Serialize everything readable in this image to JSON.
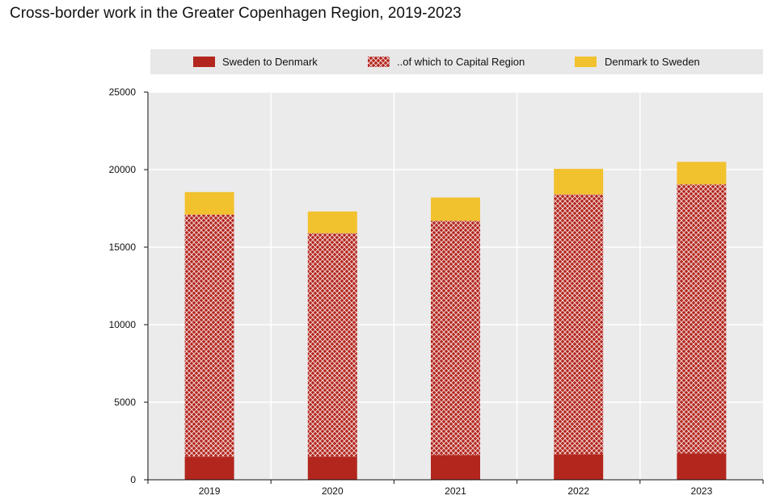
{
  "chart_data": {
    "type": "bar",
    "stacked": true,
    "title": "Cross-border work in the Greater Copenhagen Region, 2019-2023",
    "xlabel": "",
    "ylabel": "",
    "ylim": [
      0,
      25000
    ],
    "yticks": [
      0,
      5000,
      10000,
      15000,
      20000,
      25000
    ],
    "categories": [
      "2019",
      "2020",
      "2021",
      "2022",
      "2023"
    ],
    "grid": true,
    "legend_position": "top",
    "legend": [
      "Sweden to Denmark",
      "..of which to Capital Region",
      "Denmark to Sweden"
    ],
    "series": [
      {
        "name": "Sweden to Denmark",
        "color": "#b3261e",
        "values": [
          1500,
          1500,
          1600,
          1650,
          1700
        ]
      },
      {
        "name": "..of which to Capital Region",
        "color": "#b3261e",
        "pattern": "crosshatch",
        "values": [
          15600,
          14400,
          15100,
          16750,
          17350
        ]
      },
      {
        "name": "Denmark to Sweden",
        "color": "#f2c12e",
        "values": [
          1450,
          1400,
          1500,
          1650,
          1450
        ]
      }
    ]
  }
}
